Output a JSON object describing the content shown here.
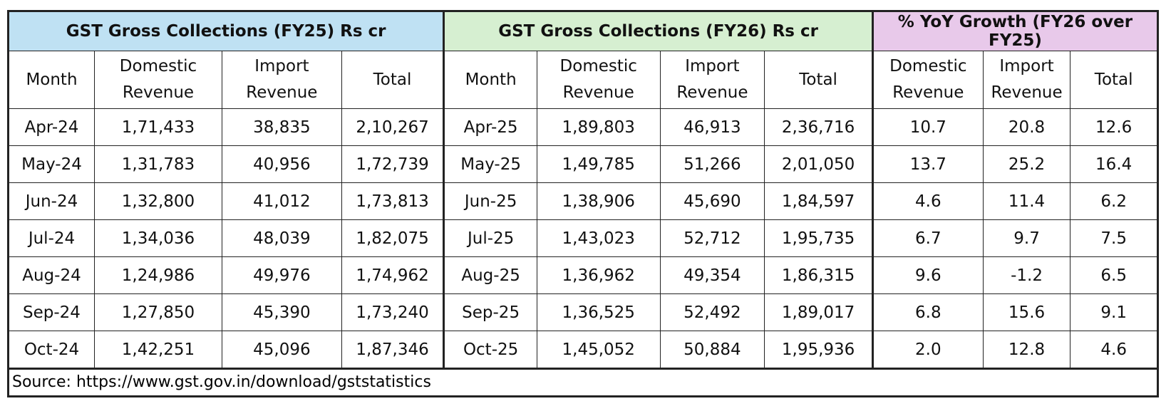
{
  "header": {
    "groups": [
      "GST Gross Collections (FY25) Rs cr",
      "GST Gross Collections (FY26) Rs cr",
      "% YoY Growth (FY26 over FY25)"
    ],
    "columns": [
      "Month",
      "Domestic Revenue",
      "Import Revenue",
      "Total",
      "Month",
      "Domestic Revenue",
      "Import Revenue",
      "Total",
      "Domestic Revenue",
      "Import Revenue",
      "Total"
    ]
  },
  "table": {
    "rows": [
      [
        "Apr-24",
        "1,71,433",
        "38,835",
        "2,10,267",
        "Apr-25",
        "1,89,803",
        "46,913",
        "2,36,716",
        "10.7",
        "20.8",
        "12.6"
      ],
      [
        "May-24",
        "1,31,783",
        "40,956",
        "1,72,739",
        "May-25",
        "1,49,785",
        "51,266",
        "2,01,050",
        "13.7",
        "25.2",
        "16.4"
      ],
      [
        "Jun-24",
        "1,32,800",
        "41,012",
        "1,73,813",
        "Jun-25",
        "1,38,906",
        "45,690",
        "1,84,597",
        "4.6",
        "11.4",
        "6.2"
      ],
      [
        "Jul-24",
        "1,34,036",
        "48,039",
        "1,82,075",
        "Jul-25",
        "1,43,023",
        "52,712",
        "1,95,735",
        "6.7",
        "9.7",
        "7.5"
      ],
      [
        "Aug-24",
        "1,24,986",
        "49,976",
        "1,74,962",
        "Aug-25",
        "1,36,962",
        "49,354",
        "1,86,315",
        "9.6",
        "-1.2",
        "6.5"
      ],
      [
        "Sep-24",
        "1,27,850",
        "45,390",
        "1,73,240",
        "Sep-25",
        "1,36,525",
        "52,492",
        "1,89,017",
        "6.8",
        "15.6",
        "9.1"
      ],
      [
        "Oct-24",
        "1,42,251",
        "45,096",
        "1,87,346",
        "Oct-25",
        "1,45,052",
        "50,884",
        "1,95,936",
        "2.0",
        "12.8",
        "4.6"
      ]
    ]
  },
  "source": "Source: https://www.gst.gov.in/download/gststatistics"
}
